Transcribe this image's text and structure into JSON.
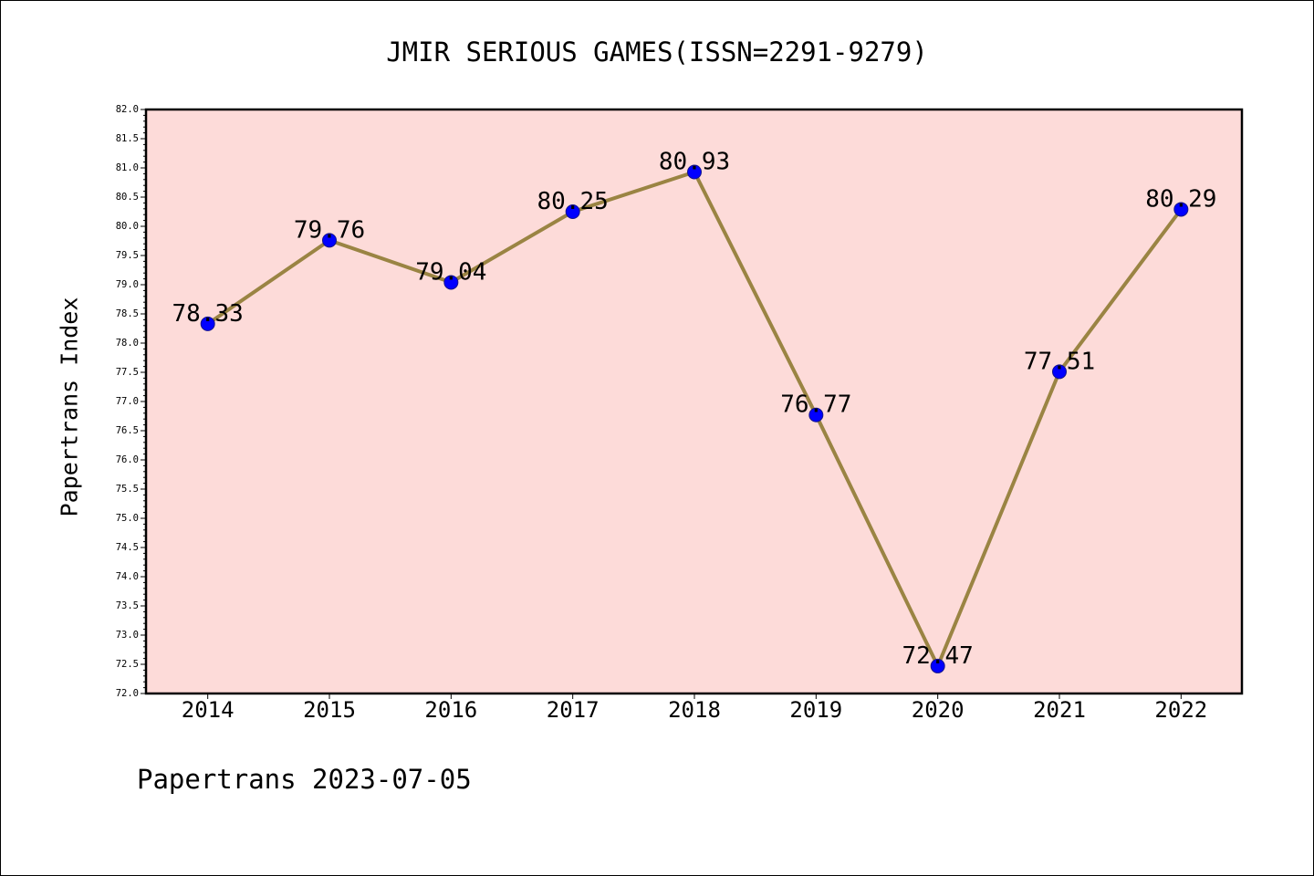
{
  "chart_data": {
    "type": "line",
    "title": "JMIR SERIOUS GAMES(ISSN=2291-9279)",
    "ylabel": "Papertrans Index",
    "categories": [
      "2014",
      "2015",
      "2016",
      "2017",
      "2018",
      "2019",
      "2020",
      "2021",
      "2022"
    ],
    "values": [
      78.33,
      79.76,
      79.04,
      80.25,
      80.93,
      76.77,
      72.47,
      77.51,
      80.29
    ],
    "ylim": [
      72.0,
      82.0
    ],
    "y_tick_labels": [
      "72.0",
      "72.5",
      "73.0",
      "73.5",
      "74.0",
      "74.5",
      "75.0",
      "75.5",
      "76.0",
      "76.5",
      "77.0",
      "77.5",
      "78.0",
      "78.5",
      "79.0",
      "79.5",
      "80.0",
      "80.5",
      "81.0",
      "81.5",
      "82.0"
    ],
    "grid": false,
    "show_legend": false,
    "colors": {
      "plot_background": "#fddbd9",
      "line": "#9a8443",
      "marker": "#0000ff",
      "marker_edge": "#14148c"
    }
  },
  "footer": "Papertrans 2023-07-05"
}
